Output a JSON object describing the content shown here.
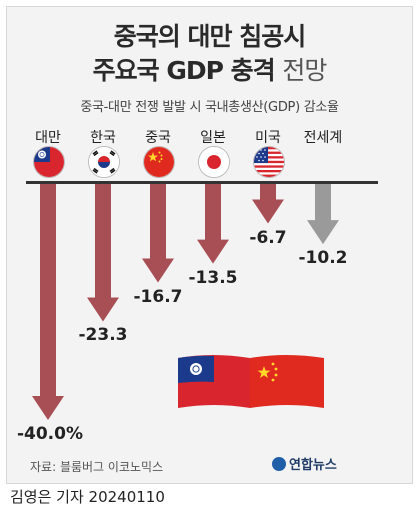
{
  "header": {
    "title_line1": "중국의 대만 침공시",
    "title_line2_bold": "주요국 GDP 충격",
    "title_line2_light": "전망",
    "subtitle": "중국-대만 전쟁 발발 시 국내총생산(GDP) 감소율"
  },
  "chart_data": {
    "type": "bar",
    "orientation": "downward-arrows",
    "categories": [
      "대만",
      "한국",
      "중국",
      "일본",
      "미국",
      "전세계"
    ],
    "values": [
      -40.0,
      -23.3,
      -16.7,
      -13.5,
      -6.7,
      -10.2
    ],
    "value_labels": [
      "-40.0%",
      "-23.3",
      "-16.7",
      "-13.5",
      "-6.7",
      "-10.2"
    ],
    "flag_icons": [
      "taiwan-flag-icon",
      "korea-flag-icon",
      "china-flag-icon",
      "japan-flag-icon",
      "usa-flag-icon",
      ""
    ],
    "colors": {
      "country": "#a84f55",
      "world": "#9a9a9a"
    },
    "ylim": [
      -40,
      0
    ],
    "grid": false,
    "legend": "none"
  },
  "footer": {
    "source": "자료: 블룸버그 이코노믹스",
    "logo_text": "연합뉴스",
    "credit": "김영은 기자  20240110"
  }
}
